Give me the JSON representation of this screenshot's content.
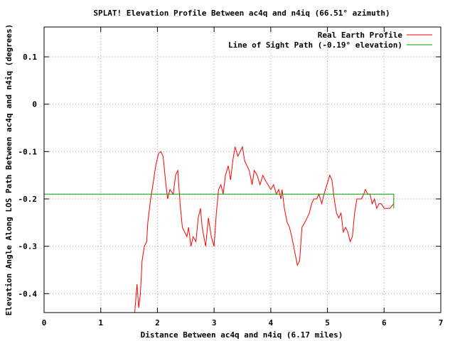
{
  "chart_data": {
    "type": "line",
    "title": "SPLAT! Elevation Profile Between ac4q and n4iq (66.51° azimuth)",
    "xlabel": "Distance Between ac4q and n4iq (6.17 miles)",
    "ylabel": "Elevation Angle Along LOS Path Between ac4q and n4iq (degrees)",
    "xlim": [
      0,
      7
    ],
    "ylim": [
      -0.44,
      0.163
    ],
    "grid": true,
    "legend_position": "top-right",
    "x_ticks": [
      {
        "value": 0,
        "label": "0"
      },
      {
        "value": 1,
        "label": "1"
      },
      {
        "value": 2,
        "label": "2"
      },
      {
        "value": 3,
        "label": "3"
      },
      {
        "value": 4,
        "label": "4"
      },
      {
        "value": 5,
        "label": "5"
      },
      {
        "value": 6,
        "label": "6"
      },
      {
        "value": 7,
        "label": "7"
      }
    ],
    "y_ticks": [
      {
        "value": 0.1,
        "label": "0.1"
      },
      {
        "value": 0,
        "label": "0"
      },
      {
        "value": -0.1,
        "label": "-0.1"
      },
      {
        "value": -0.2,
        "label": "-0.2"
      },
      {
        "value": -0.3,
        "label": "-0.3"
      },
      {
        "value": -0.4,
        "label": "-0.4"
      }
    ],
    "series": [
      {
        "name": "Real Earth Profile",
        "color": "#ff0000",
        "points": [
          [
            1.6,
            -0.44
          ],
          [
            1.64,
            -0.38
          ],
          [
            1.67,
            -0.43
          ],
          [
            1.7,
            -0.4
          ],
          [
            1.73,
            -0.33
          ],
          [
            1.77,
            -0.3
          ],
          [
            1.81,
            -0.29
          ],
          [
            1.83,
            -0.25
          ],
          [
            1.88,
            -0.2
          ],
          [
            1.92,
            -0.17
          ],
          [
            1.97,
            -0.13
          ],
          [
            2.02,
            -0.104
          ],
          [
            2.06,
            -0.1
          ],
          [
            2.1,
            -0.11
          ],
          [
            2.15,
            -0.17
          ],
          [
            2.18,
            -0.2
          ],
          [
            2.22,
            -0.18
          ],
          [
            2.28,
            -0.19
          ],
          [
            2.32,
            -0.15
          ],
          [
            2.36,
            -0.14
          ],
          [
            2.4,
            -0.21
          ],
          [
            2.44,
            -0.26
          ],
          [
            2.48,
            -0.27
          ],
          [
            2.52,
            -0.28
          ],
          [
            2.55,
            -0.26
          ],
          [
            2.59,
            -0.3
          ],
          [
            2.63,
            -0.28
          ],
          [
            2.68,
            -0.29
          ],
          [
            2.72,
            -0.24
          ],
          [
            2.76,
            -0.22
          ],
          [
            2.79,
            -0.26
          ],
          [
            2.82,
            -0.28
          ],
          [
            2.85,
            -0.3
          ],
          [
            2.9,
            -0.24
          ],
          [
            2.95,
            -0.28
          ],
          [
            3.0,
            -0.3
          ],
          [
            3.04,
            -0.23
          ],
          [
            3.08,
            -0.18
          ],
          [
            3.12,
            -0.17
          ],
          [
            3.16,
            -0.19
          ],
          [
            3.2,
            -0.15
          ],
          [
            3.25,
            -0.13
          ],
          [
            3.29,
            -0.16
          ],
          [
            3.33,
            -0.12
          ],
          [
            3.37,
            -0.09
          ],
          [
            3.42,
            -0.11
          ],
          [
            3.46,
            -0.1
          ],
          [
            3.5,
            -0.09
          ],
          [
            3.54,
            -0.12
          ],
          [
            3.58,
            -0.13
          ],
          [
            3.62,
            -0.14
          ],
          [
            3.67,
            -0.17
          ],
          [
            3.71,
            -0.14
          ],
          [
            3.76,
            -0.15
          ],
          [
            3.81,
            -0.17
          ],
          [
            3.86,
            -0.15
          ],
          [
            3.9,
            -0.16
          ],
          [
            3.95,
            -0.17
          ],
          [
            4.0,
            -0.18
          ],
          [
            4.05,
            -0.17
          ],
          [
            4.1,
            -0.19
          ],
          [
            4.14,
            -0.18
          ],
          [
            4.18,
            -0.2
          ],
          [
            4.2,
            -0.18
          ],
          [
            4.24,
            -0.22
          ],
          [
            4.29,
            -0.25
          ],
          [
            4.33,
            -0.26
          ],
          [
            4.37,
            -0.28
          ],
          [
            4.42,
            -0.31
          ],
          [
            4.47,
            -0.34
          ],
          [
            4.51,
            -0.33
          ],
          [
            4.55,
            -0.26
          ],
          [
            4.6,
            -0.25
          ],
          [
            4.64,
            -0.24
          ],
          [
            4.68,
            -0.23
          ],
          [
            4.72,
            -0.21
          ],
          [
            4.76,
            -0.2
          ],
          [
            4.81,
            -0.2
          ],
          [
            4.85,
            -0.19
          ],
          [
            4.9,
            -0.21
          ],
          [
            4.94,
            -0.19
          ],
          [
            4.99,
            -0.17
          ],
          [
            5.04,
            -0.15
          ],
          [
            5.08,
            -0.16
          ],
          [
            5.12,
            -0.2
          ],
          [
            5.16,
            -0.23
          ],
          [
            5.2,
            -0.24
          ],
          [
            5.24,
            -0.23
          ],
          [
            5.28,
            -0.27
          ],
          [
            5.32,
            -0.26
          ],
          [
            5.36,
            -0.27
          ],
          [
            5.4,
            -0.29
          ],
          [
            5.44,
            -0.28
          ],
          [
            5.48,
            -0.23
          ],
          [
            5.52,
            -0.2
          ],
          [
            5.56,
            -0.2
          ],
          [
            5.6,
            -0.2
          ],
          [
            5.64,
            -0.19
          ],
          [
            5.67,
            -0.18
          ],
          [
            5.71,
            -0.19
          ],
          [
            5.75,
            -0.19
          ],
          [
            5.79,
            -0.21
          ],
          [
            5.83,
            -0.2
          ],
          [
            5.87,
            -0.22
          ],
          [
            5.91,
            -0.21
          ],
          [
            5.95,
            -0.21
          ],
          [
            6.0,
            -0.22
          ],
          [
            6.05,
            -0.22
          ],
          [
            6.1,
            -0.22
          ],
          [
            6.17,
            -0.21
          ]
        ]
      },
      {
        "name": "Line of Sight Path (-0.19° elevation)",
        "color": "#00a000",
        "points": [
          [
            0,
            -0.19
          ],
          [
            6.17,
            -0.19
          ],
          [
            6.17,
            -0.22
          ]
        ]
      }
    ]
  }
}
